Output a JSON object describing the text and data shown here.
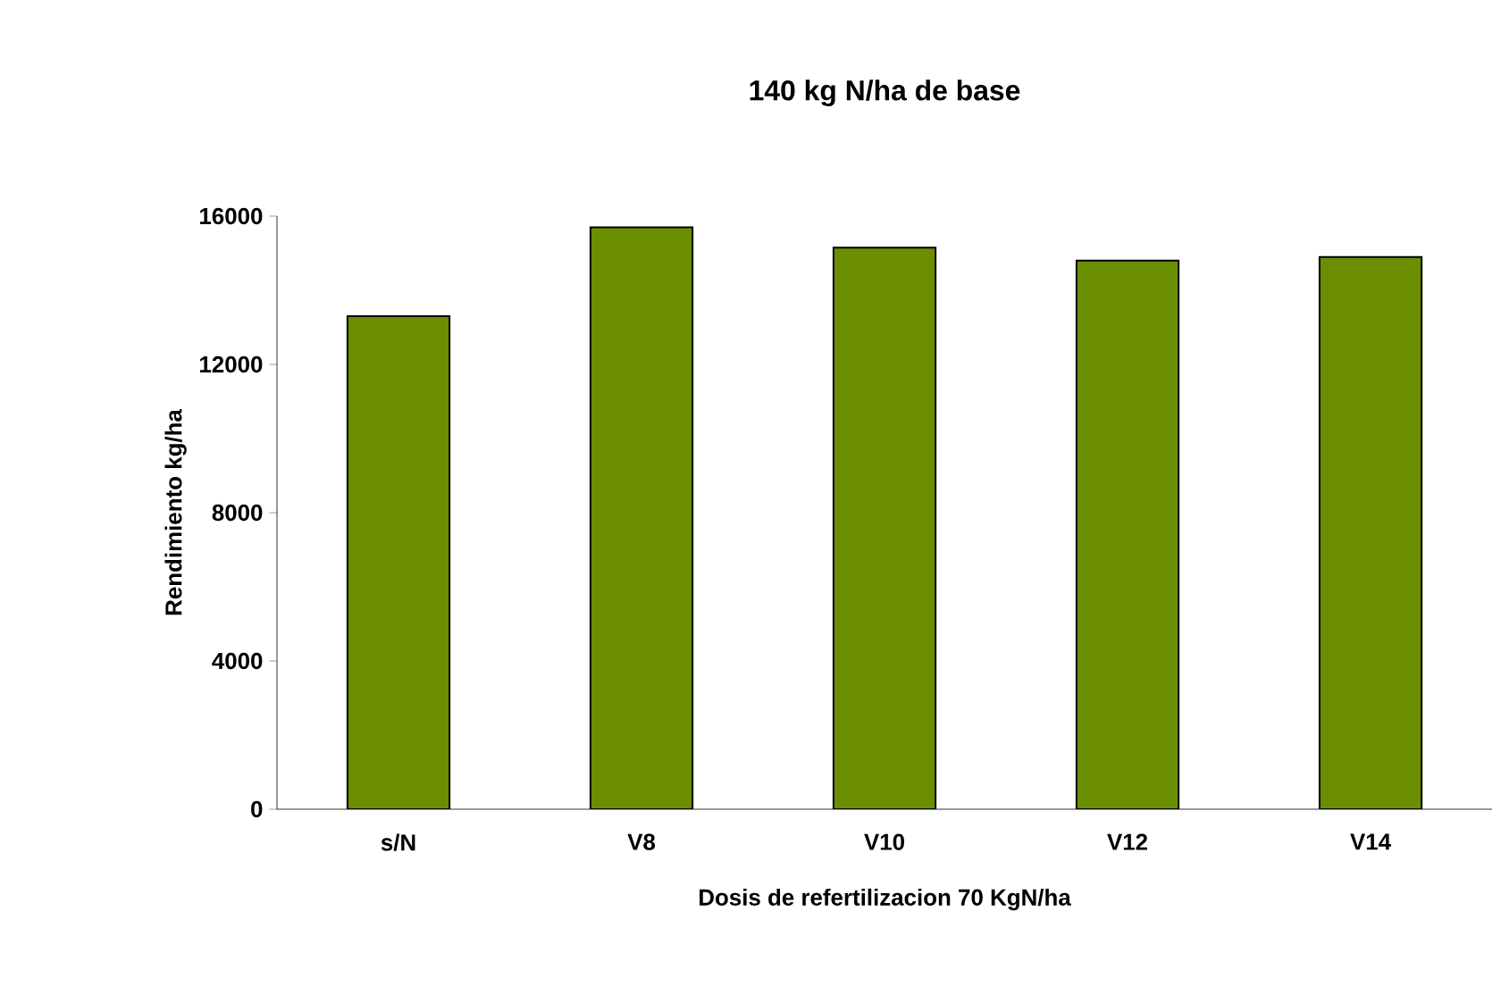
{
  "chart_data": {
    "type": "bar",
    "title": "140 kg N/ha de base",
    "xlabel": "Dosis de refertilizacion 70 KgN/ha",
    "ylabel": "Rendimiento kg/ha",
    "categories": [
      "s/N",
      "V8",
      "V10",
      "V12",
      "V14"
    ],
    "values": [
      13300,
      15700,
      15150,
      14800,
      14900
    ],
    "color": "#6b8e00",
    "ylim": [
      0,
      16000
    ],
    "yticks": [
      0,
      4000,
      8000,
      12000,
      16000
    ],
    "grid": false
  }
}
